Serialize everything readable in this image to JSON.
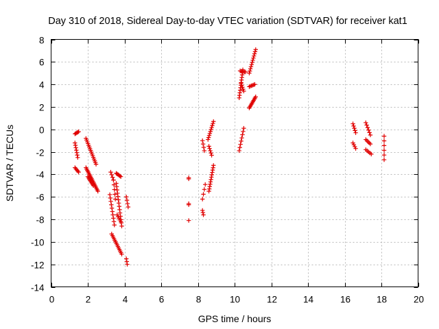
{
  "chart_data": {
    "type": "scatter",
    "title": "Day 310 of 2018, Sidereal Day-to-day VTEC variation (SDTVAR) for receiver kat1",
    "xlabel": "GPS time / hours",
    "ylabel": "SDTVAR / TECUs",
    "xlim": [
      0,
      20
    ],
    "ylim": [
      -14,
      8
    ],
    "xticks": [
      0,
      2,
      4,
      6,
      8,
      10,
      12,
      14,
      16,
      18,
      20
    ],
    "yticks": [
      -14,
      -12,
      -10,
      -8,
      -6,
      -4,
      -2,
      0,
      2,
      4,
      6,
      8
    ],
    "grid": true,
    "marker": "+",
    "color": "#e00000",
    "segments": [
      {
        "x0": 1.3,
        "y0": -0.4,
        "x1": 1.5,
        "y1": -0.2,
        "n": 5
      },
      {
        "x0": 1.3,
        "y0": -1.2,
        "x1": 1.45,
        "y1": -2.5,
        "n": 7
      },
      {
        "x0": 1.3,
        "y0": -3.4,
        "x1": 1.5,
        "y1": -3.8,
        "n": 5
      },
      {
        "x0": 1.9,
        "y0": -0.8,
        "x1": 2.45,
        "y1": -3.1,
        "n": 16
      },
      {
        "x0": 1.9,
        "y0": -3.4,
        "x1": 2.55,
        "y1": -5.5,
        "n": 18
      },
      {
        "x0": 2.0,
        "y0": -4.2,
        "x1": 2.3,
        "y1": -5.0,
        "n": 8
      },
      {
        "x0": 3.25,
        "y0": -3.8,
        "x1": 3.4,
        "y1": -4.5,
        "n": 4
      },
      {
        "x0": 3.2,
        "y0": -5.8,
        "x1": 3.45,
        "y1": -8.5,
        "n": 10
      },
      {
        "x0": 3.3,
        "y0": -9.3,
        "x1": 3.85,
        "y1": -11.1,
        "n": 14
      },
      {
        "x0": 3.4,
        "y0": -4.5,
        "x1": 3.5,
        "y1": -6.2,
        "n": 5
      },
      {
        "x0": 3.55,
        "y0": -3.9,
        "x1": 3.8,
        "y1": -4.2,
        "n": 6
      },
      {
        "x0": 3.55,
        "y0": -4.8,
        "x1": 3.85,
        "y1": -8.6,
        "n": 14
      },
      {
        "x0": 3.6,
        "y0": -7.6,
        "x1": 3.8,
        "y1": -8.2,
        "n": 5
      },
      {
        "x0": 4.1,
        "y0": -6.0,
        "x1": 4.2,
        "y1": -6.9,
        "n": 4
      },
      {
        "x0": 4.1,
        "y0": -11.5,
        "x1": 4.15,
        "y1": -12.0,
        "n": 3
      },
      {
        "x0": 7.5,
        "y0": -4.3,
        "x1": 7.5,
        "y1": -4.4,
        "n": 2
      },
      {
        "x0": 7.5,
        "y0": -6.6,
        "x1": 7.5,
        "y1": -6.7,
        "n": 2
      },
      {
        "x0": 7.5,
        "y0": -8.1,
        "x1": 7.5,
        "y1": -8.1,
        "n": 1
      },
      {
        "x0": 8.25,
        "y0": -1.0,
        "x1": 8.35,
        "y1": -1.9,
        "n": 4
      },
      {
        "x0": 8.25,
        "y0": -6.2,
        "x1": 8.4,
        "y1": -4.9,
        "n": 4
      },
      {
        "x0": 8.25,
        "y0": -7.2,
        "x1": 8.3,
        "y1": -7.6,
        "n": 3
      },
      {
        "x0": 8.55,
        "y0": -0.9,
        "x1": 8.85,
        "y1": 0.7,
        "n": 10
      },
      {
        "x0": 8.6,
        "y0": -1.5,
        "x1": 8.75,
        "y1": -2.3,
        "n": 5
      },
      {
        "x0": 8.6,
        "y0": -5.5,
        "x1": 8.85,
        "y1": -3.2,
        "n": 12
      },
      {
        "x0": 10.25,
        "y0": -1.9,
        "x1": 10.5,
        "y1": 0.1,
        "n": 8
      },
      {
        "x0": 10.25,
        "y0": 2.8,
        "x1": 10.45,
        "y1": 5.3,
        "n": 12
      },
      {
        "x0": 10.3,
        "y0": 5.2,
        "x1": 10.6,
        "y1": 5.1,
        "n": 6
      },
      {
        "x0": 10.35,
        "y0": 4.1,
        "x1": 10.5,
        "y1": 3.4,
        "n": 5
      },
      {
        "x0": 10.8,
        "y0": 1.9,
        "x1": 11.15,
        "y1": 2.9,
        "n": 10
      },
      {
        "x0": 10.8,
        "y0": 3.8,
        "x1": 11.1,
        "y1": 4.0,
        "n": 6
      },
      {
        "x0": 10.8,
        "y0": 5.0,
        "x1": 11.15,
        "y1": 7.1,
        "n": 12
      },
      {
        "x0": 16.45,
        "y0": 0.5,
        "x1": 16.6,
        "y1": -0.3,
        "n": 5
      },
      {
        "x0": 16.45,
        "y0": -1.2,
        "x1": 16.6,
        "y1": -1.7,
        "n": 4
      },
      {
        "x0": 17.15,
        "y0": 0.6,
        "x1": 17.4,
        "y1": -0.5,
        "n": 6
      },
      {
        "x0": 17.15,
        "y0": -0.9,
        "x1": 17.4,
        "y1": -1.3,
        "n": 5
      },
      {
        "x0": 17.15,
        "y0": -1.8,
        "x1": 17.45,
        "y1": -2.2,
        "n": 5
      },
      {
        "x0": 18.15,
        "y0": -0.6,
        "x1": 18.15,
        "y1": -2.7,
        "n": 6
      }
    ]
  }
}
